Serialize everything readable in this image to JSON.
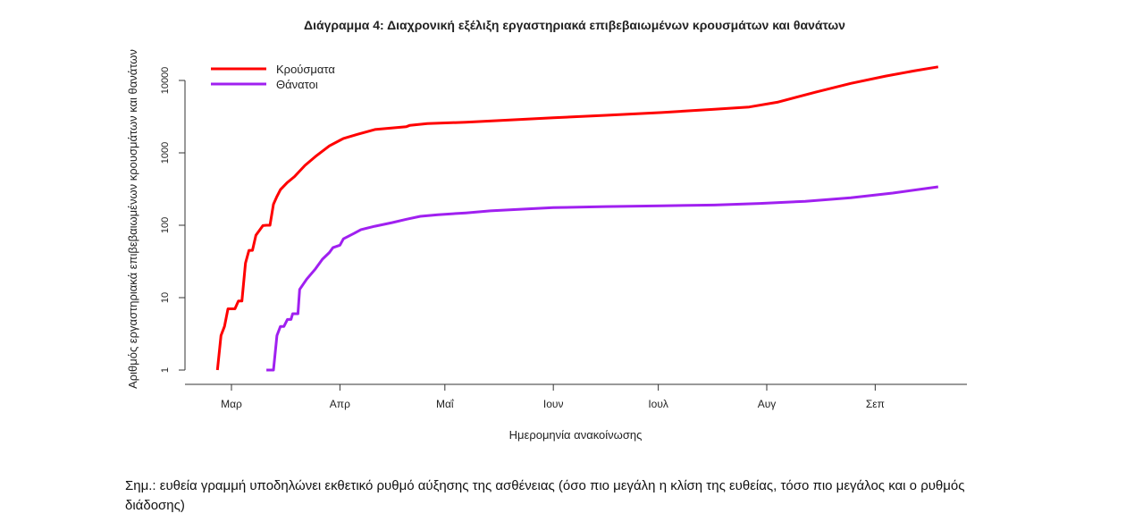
{
  "chart_data": {
    "type": "line",
    "title": "Διάγραμμα 4: Διαχρονική εξέλιξη εργαστηριακά επιβεβαιωμένων κρουσμάτων και θανάτων",
    "xlabel": "Ημερομηνία ανακοίνωσης",
    "ylabel": "Αριθμός εργαστηριακά επιβεβαιωμένων κρουσμάτων και θανάτων",
    "x_unit": "days since 1 March 2020",
    "y_scale": "log",
    "ylim": [
      1,
      10000
    ],
    "xlim": [
      -13,
      210
    ],
    "x_ticks": [
      {
        "value": 0,
        "label": "Μαρ"
      },
      {
        "value": 31,
        "label": "Απρ"
      },
      {
        "value": 61,
        "label": "Μαΐ"
      },
      {
        "value": 92,
        "label": "Ιουν"
      },
      {
        "value": 122,
        "label": "Ιουλ"
      },
      {
        "value": 153,
        "label": "Αυγ"
      },
      {
        "value": 184,
        "label": "Σεπ"
      }
    ],
    "y_ticks": [
      {
        "value": 1,
        "label": "1"
      },
      {
        "value": 10,
        "label": "10"
      },
      {
        "value": 100,
        "label": "100"
      },
      {
        "value": 1000,
        "label": "1000"
      },
      {
        "value": 10000,
        "label": "10000"
      }
    ],
    "legend_position": "top-left",
    "series": [
      {
        "name": "Κρούσματα",
        "color": "#ff0000",
        "x": [
          -4,
          -3,
          -2,
          -1,
          1,
          2,
          3,
          4,
          5,
          6,
          7,
          9,
          10,
          11,
          12,
          13,
          14,
          16,
          18,
          21,
          24,
          28,
          32,
          36,
          41,
          50,
          51,
          56,
          67,
          77,
          92,
          107,
          123,
          138,
          148,
          156,
          167,
          177,
          187,
          195,
          202
        ],
        "y": [
          1,
          3,
          4,
          7,
          7,
          9,
          9,
          30,
          45,
          45,
          73,
          99,
          100,
          100,
          195,
          250,
          310,
          390,
          470,
          670,
          890,
          1250,
          1580,
          1800,
          2100,
          2300,
          2400,
          2530,
          2650,
          2800,
          3050,
          3300,
          3600,
          4000,
          4300,
          5000,
          6900,
          9100,
          11500,
          13500,
          15400
        ]
      },
      {
        "name": "Θάνατοι",
        "color": "#a020f0",
        "x": [
          10,
          12,
          13,
          14,
          15,
          16,
          17,
          17.5,
          19,
          19.5,
          21.5,
          24,
          26,
          28,
          29,
          31,
          32,
          35,
          37,
          41,
          46,
          50,
          54,
          59,
          67,
          74,
          82,
          92,
          107,
          123,
          138,
          151,
          164,
          177,
          189,
          202
        ],
        "y": [
          1,
          1,
          3,
          4,
          4,
          5,
          5,
          6,
          6,
          13,
          18,
          25,
          34,
          42,
          49,
          53,
          65,
          77,
          87,
          97,
          109,
          121,
          133,
          140,
          148,
          158,
          166,
          175,
          181,
          186,
          190,
          200,
          214,
          240,
          278,
          340
        ]
      }
    ]
  },
  "note": "Σημ.: ευθεία γραμμή υποδηλώνει εκθετικό ρυθμό αύξησης της ασθένειας (όσο πιο μεγάλη η κλίση της ευθείας, τόσο πιο μεγάλος και ο ρυθμός διάδοσης)"
}
